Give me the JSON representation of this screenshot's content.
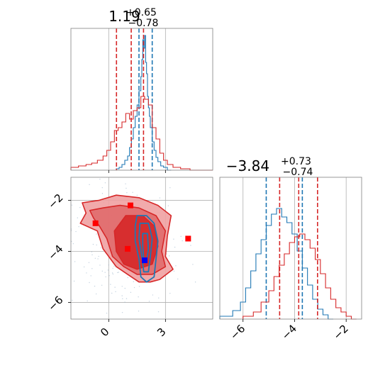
{
  "colors": {
    "red": "#d62728",
    "blue": "#1f77b4",
    "marker_red": "#ff0000",
    "marker_blue": "#0000ff",
    "red_fill_light": "#f0a1a2",
    "red_fill_dark": "#d62728"
  },
  "chart_data": [
    {
      "type": "histogram",
      "panel": "top-left",
      "title": {
        "value": "1.19",
        "plus": "+0.65",
        "minus": "−0.78"
      },
      "xlim": [
        -2.0,
        5.5
      ],
      "ylim": [
        0,
        1.0
      ],
      "grid": true,
      "series": [
        {
          "color": "blue",
          "bins": [
            0.4,
            0.55,
            0.7,
            0.85,
            1.0,
            1.1,
            1.2,
            1.3,
            1.4,
            1.5,
            1.6,
            1.7,
            1.75,
            1.8,
            1.85,
            1.9,
            1.95,
            2.0,
            2.05,
            2.1,
            2.15,
            2.2,
            2.3,
            2.4,
            2.5,
            2.6,
            2.75,
            2.9,
            3.1,
            3.3
          ],
          "counts": [
            0.01,
            0.02,
            0.04,
            0.07,
            0.1,
            0.16,
            0.22,
            0.3,
            0.38,
            0.46,
            0.56,
            0.66,
            0.78,
            0.92,
            0.86,
            0.95,
            0.76,
            0.68,
            0.52,
            0.44,
            0.38,
            0.3,
            0.2,
            0.14,
            0.09,
            0.06,
            0.03,
            0.02,
            0.0
          ],
          "quantiles": [
            1.6,
            2.3
          ]
        },
        {
          "color": "red",
          "bins": [
            -2.0,
            -1.6,
            -1.2,
            -0.9,
            -0.6,
            -0.3,
            -0.1,
            0.1,
            0.3,
            0.5,
            0.7,
            0.9,
            1.1,
            1.3,
            1.5,
            1.7,
            1.9,
            2.1,
            2.3,
            2.5,
            2.7,
            2.9,
            3.1,
            3.4,
            3.8,
            4.3,
            5.5
          ],
          "counts": [
            0.02,
            0.03,
            0.04,
            0.05,
            0.07,
            0.1,
            0.14,
            0.2,
            0.28,
            0.3,
            0.34,
            0.4,
            0.36,
            0.42,
            0.44,
            0.52,
            0.5,
            0.46,
            0.3,
            0.22,
            0.12,
            0.07,
            0.04,
            0.02,
            0.01,
            0.0
          ],
          "quantiles": [
            0.41,
            1.19,
            1.84
          ]
        }
      ]
    },
    {
      "type": "histogram",
      "panel": "bottom-right",
      "title": {
        "value": "−3.84",
        "plus": "+0.73",
        "minus": "−0.74"
      },
      "xlim": [
        -6.9,
        -1.4
      ],
      "ylim": [
        0,
        1.0
      ],
      "grid": true,
      "xticks": [
        -6,
        -4,
        -2
      ],
      "xticklabels": [
        "−6",
        "−4",
        "−2"
      ],
      "series": [
        {
          "color": "blue",
          "bins": [
            -6.9,
            -6.4,
            -6.1,
            -5.9,
            -5.7,
            -5.5,
            -5.3,
            -5.1,
            -4.9,
            -4.7,
            -4.5,
            -4.3,
            -4.1,
            -3.9,
            -3.7,
            -3.5,
            -3.3,
            -3.1,
            -2.9,
            -2.7,
            -2.5
          ],
          "counts": [
            0.02,
            0.06,
            0.12,
            0.22,
            0.34,
            0.46,
            0.56,
            0.66,
            0.74,
            0.78,
            0.72,
            0.68,
            0.6,
            0.48,
            0.36,
            0.24,
            0.14,
            0.07,
            0.03,
            0.0
          ],
          "quantiles": [
            -5.1,
            -3.7
          ]
        },
        {
          "color": "red",
          "bins": [
            -6.0,
            -5.6,
            -5.3,
            -5.0,
            -4.8,
            -4.6,
            -4.4,
            -4.2,
            -4.0,
            -3.8,
            -3.6,
            -3.4,
            -3.2,
            -3.0,
            -2.8,
            -2.6,
            -2.4,
            -2.2,
            -2.0,
            -1.8,
            -1.6
          ],
          "counts": [
            0.02,
            0.05,
            0.12,
            0.2,
            0.3,
            0.38,
            0.46,
            0.54,
            0.58,
            0.6,
            0.56,
            0.5,
            0.42,
            0.32,
            0.22,
            0.14,
            0.08,
            0.05,
            0.02,
            0.0
          ],
          "quantiles": [
            -4.58,
            -3.84,
            -3.11
          ]
        }
      ]
    },
    {
      "type": "contour",
      "panel": "bottom-left",
      "xlim": [
        -2.0,
        5.5
      ],
      "ylim": [
        -6.65,
        -1.1
      ],
      "grid": true,
      "xticks": [
        0,
        3
      ],
      "xticklabels": [
        "0",
        "3"
      ],
      "yticks": [
        -2,
        -4,
        -6
      ],
      "yticklabels": [
        "−2",
        "−4",
        "−6"
      ],
      "red_levels": [
        [
          [
            -1.4,
            -2.1
          ],
          [
            -0.5,
            -2.0
          ],
          [
            0.4,
            -1.8
          ],
          [
            1.6,
            -1.9
          ],
          [
            2.6,
            -2.2
          ],
          [
            3.3,
            -2.6
          ],
          [
            3.1,
            -3.4
          ],
          [
            3.0,
            -4.2
          ],
          [
            3.4,
            -4.7
          ],
          [
            2.7,
            -5.1
          ],
          [
            2.2,
            -5.2
          ],
          [
            1.6,
            -5.2
          ],
          [
            1.0,
            -4.9
          ],
          [
            0.4,
            -4.6
          ],
          [
            -0.3,
            -3.9
          ],
          [
            -0.6,
            -3.2
          ],
          [
            -1.5,
            -2.9
          ],
          [
            -1.2,
            -2.5
          ]
        ],
        [
          [
            -1.0,
            -2.4
          ],
          [
            -0.3,
            -2.3
          ],
          [
            0.6,
            -2.2
          ],
          [
            1.6,
            -2.3
          ],
          [
            2.5,
            -2.6
          ],
          [
            3.0,
            -3.2
          ],
          [
            2.8,
            -4.0
          ],
          [
            3.0,
            -4.6
          ],
          [
            2.3,
            -4.9
          ],
          [
            1.5,
            -4.9
          ],
          [
            0.8,
            -4.6
          ],
          [
            0.2,
            -4.2
          ],
          [
            -0.1,
            -3.5
          ],
          [
            -0.5,
            -3.0
          ],
          [
            -0.8,
            -2.7
          ]
        ],
        [
          [
            0.3,
            -3.2
          ],
          [
            0.9,
            -2.6
          ],
          [
            1.8,
            -2.6
          ],
          [
            2.4,
            -3.0
          ],
          [
            2.6,
            -3.8
          ],
          [
            2.3,
            -4.5
          ],
          [
            1.5,
            -4.7
          ],
          [
            0.8,
            -4.5
          ],
          [
            0.4,
            -4.0
          ]
        ]
      ],
      "blue_levels": [
        [
          [
            1.5,
            -2.6
          ],
          [
            2.0,
            -2.6
          ],
          [
            2.4,
            -2.9
          ],
          [
            2.6,
            -3.6
          ],
          [
            2.5,
            -4.3
          ],
          [
            2.4,
            -5.0
          ],
          [
            2.0,
            -5.2
          ],
          [
            1.7,
            -5.0
          ],
          [
            1.6,
            -4.3
          ],
          [
            1.4,
            -3.6
          ],
          [
            1.4,
            -3.0
          ]
        ],
        [
          [
            1.65,
            -2.9
          ],
          [
            2.1,
            -2.9
          ],
          [
            2.3,
            -3.5
          ],
          [
            2.2,
            -4.2
          ],
          [
            2.1,
            -4.8
          ],
          [
            1.85,
            -4.8
          ],
          [
            1.75,
            -4.2
          ],
          [
            1.6,
            -3.5
          ]
        ],
        [
          [
            1.8,
            -3.3
          ],
          [
            2.05,
            -3.3
          ],
          [
            2.1,
            -3.9
          ],
          [
            2.0,
            -4.4
          ],
          [
            1.85,
            -4.3
          ],
          [
            1.8,
            -3.8
          ]
        ]
      ],
      "markers": [
        {
          "x": -0.7,
          "y": -2.9,
          "color": "marker_red"
        },
        {
          "x": 1.15,
          "y": -2.2,
          "color": "marker_red"
        },
        {
          "x": 4.2,
          "y": -3.5,
          "color": "marker_red"
        },
        {
          "x": 1.0,
          "y": -3.9,
          "color": "marker_red"
        },
        {
          "x": 1.9,
          "y": -4.35,
          "color": "marker_blue"
        }
      ]
    }
  ]
}
